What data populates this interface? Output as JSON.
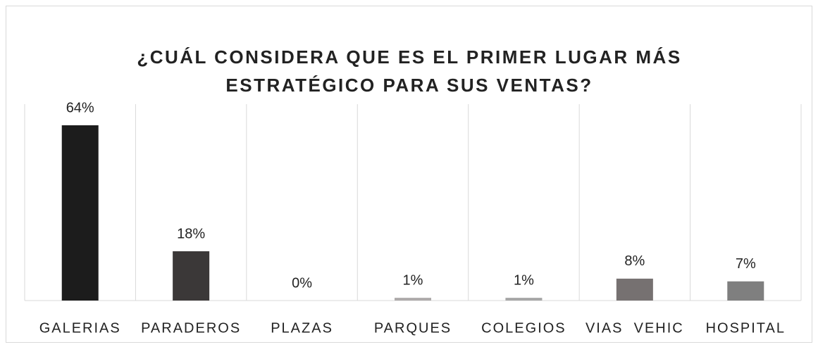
{
  "chart_data": {
    "type": "bar",
    "title": [
      "¿CUÁL CONSIDERA QUE ES EL PRIMER LUGAR MÁS",
      "ESTRATÉGICO PARA SUS VENTAS?"
    ],
    "categories": [
      "GALERIAS",
      "PARADEROS",
      "PLAZAS",
      "PARQUES",
      "COLEGIOS",
      "VIAS  VEHIC",
      "HOSPITAL"
    ],
    "values": [
      64,
      18,
      0,
      1,
      1,
      8,
      7
    ],
    "value_labels": [
      "64%",
      "18%",
      "0%",
      "1%",
      "1%",
      "8%",
      "7%"
    ],
    "colors": [
      "#1c1c1c",
      "#3b3838",
      "#595959",
      "#aeaaaa",
      "#a6a6a6",
      "#767171",
      "#7f7f7f"
    ],
    "grid": false
  }
}
